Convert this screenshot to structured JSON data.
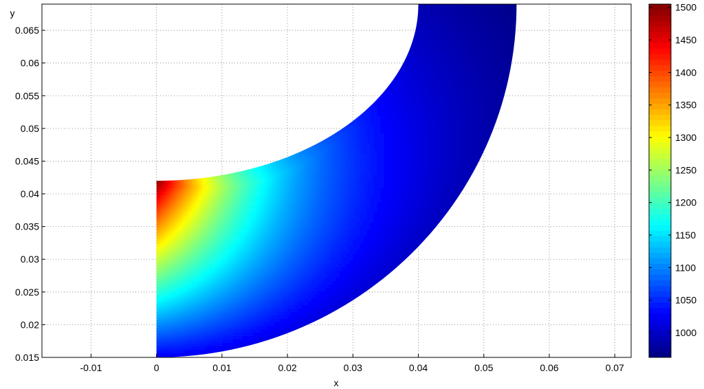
{
  "chart_data": {
    "type": "heatmap",
    "title": "",
    "xlabel": "x",
    "ylabel": "y",
    "xlim": [
      -0.0175,
      0.0725
    ],
    "ylim": [
      0.015,
      0.069
    ],
    "grid": true,
    "grid_style": "dotted",
    "x_ticks": [
      -0.01,
      0,
      0.01,
      0.02,
      0.03,
      0.04,
      0.05,
      0.06,
      0.07
    ],
    "x_tick_labels": [
      "-0.01",
      "0",
      "0.01",
      "0.02",
      "0.03",
      "0.04",
      "0.05",
      "0.06",
      "0.07"
    ],
    "y_ticks": [
      0.015,
      0.02,
      0.025,
      0.03,
      0.035,
      0.04,
      0.045,
      0.05,
      0.055,
      0.06,
      0.065
    ],
    "y_tick_labels": [
      "0.015",
      "0.02",
      "0.025",
      "0.03",
      "0.035",
      "0.04",
      "0.045",
      "0.05",
      "0.055",
      "0.06",
      "0.065"
    ],
    "colormap": "jet",
    "colorbar": {
      "position": "right",
      "range": [
        962,
        1505
      ],
      "ticks": [
        1000,
        1050,
        1100,
        1150,
        1200,
        1250,
        1300,
        1350,
        1400,
        1450,
        1500
      ],
      "tick_labels": [
        "1000",
        "1050",
        "1100",
        "1150",
        "1200",
        "1250",
        "1300",
        "1350",
        "1400",
        "1450",
        "1500"
      ]
    },
    "domain": {
      "shape": "curved duct (quarter bend)",
      "center": [
        0.0,
        0.069
      ],
      "inner_radius": 0.027,
      "outer_radius": 0.054,
      "inlet_x": 0.0,
      "inlet_y_range": [
        0.015,
        0.042
      ],
      "outlet_y": 0.069,
      "outlet_x_range": [
        0.04,
        0.055
      ]
    },
    "field": {
      "max_value": 1505,
      "min_value": 962,
      "max_location": [
        0.0,
        0.042
      ],
      "min_location": [
        0.045,
        0.069
      ]
    }
  }
}
